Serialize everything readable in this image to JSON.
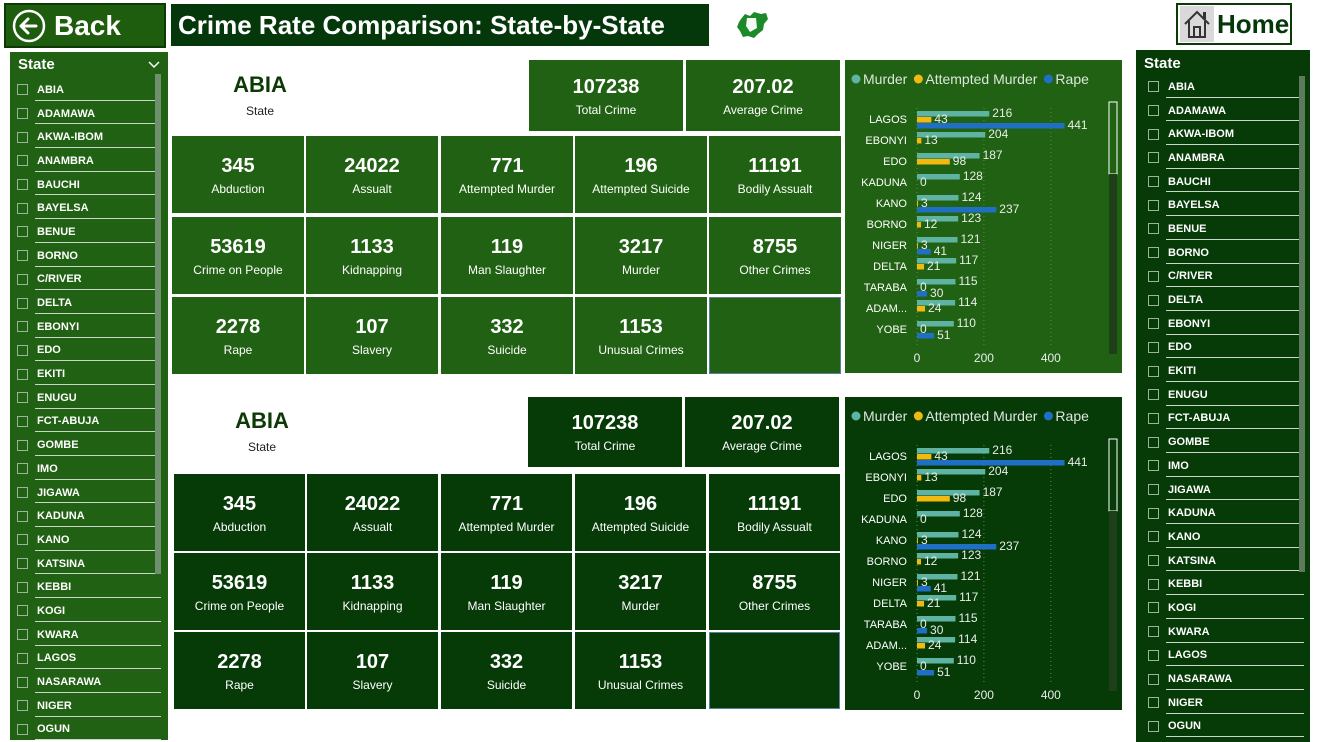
{
  "header": {
    "back_label": "Back",
    "title": "Crime Rate Comparison: State-by-State",
    "home_label": "Home"
  },
  "colors": {
    "dark_green": "#063a07",
    "mid_green": "#216113",
    "murder": "#5fb3a3",
    "attempted": "#f2b90f",
    "rape": "#1f6fc4"
  },
  "slicer_left": {
    "title": "State",
    "items": [
      "ABIA",
      "ADAMAWA",
      "AKWA-IBOM",
      "ANAMBRA",
      "BAUCHI",
      "BAYELSA",
      "BENUE",
      "BORNO",
      "C/RIVER",
      "DELTA",
      "EBONYI",
      "EDO",
      "EKITI",
      "ENUGU",
      "FCT-ABUJA",
      "GOMBE",
      "IMO",
      "JIGAWA",
      "KADUNA",
      "KANO",
      "KATSINA",
      "KEBBI",
      "KOGI",
      "KWARA",
      "LAGOS",
      "NASARAWA",
      "NIGER",
      "OGUN"
    ]
  },
  "slicer_right": {
    "title": "State",
    "items": [
      "ABIA",
      "ADAMAWA",
      "AKWA-IBOM",
      "ANAMBRA",
      "BAUCHI",
      "BAYELSA",
      "BENUE",
      "BORNO",
      "C/RIVER",
      "DELTA",
      "EBONYI",
      "EDO",
      "EKITI",
      "ENUGU",
      "FCT-ABUJA",
      "GOMBE",
      "IMO",
      "JIGAWA",
      "KADUNA",
      "KANO",
      "KATSINA",
      "KEBBI",
      "KOGI",
      "KWARA",
      "LAGOS",
      "NASARAWA",
      "NIGER",
      "OGUN"
    ]
  },
  "panel_top": {
    "state_value": "ABIA",
    "state_label": "State",
    "total_value": "107238",
    "total_label": "Total Crime",
    "avg_value": "207.02",
    "avg_label": "Average Crime",
    "metrics": [
      {
        "value": "345",
        "label": "Abduction"
      },
      {
        "value": "24022",
        "label": "Assualt"
      },
      {
        "value": "771",
        "label": "Attempted Murder"
      },
      {
        "value": "196",
        "label": "Attempted Suicide"
      },
      {
        "value": "11191",
        "label": "Bodily Assualt"
      },
      {
        "value": "53619",
        "label": "Crime on People"
      },
      {
        "value": "1133",
        "label": "Kidnapping"
      },
      {
        "value": "119",
        "label": "Man Slaughter"
      },
      {
        "value": "3217",
        "label": "Murder"
      },
      {
        "value": "8755",
        "label": "Other Crimes"
      },
      {
        "value": "2278",
        "label": "Rape"
      },
      {
        "value": "107",
        "label": "Slavery"
      },
      {
        "value": "332",
        "label": "Suicide"
      },
      {
        "value": "1153",
        "label": "Unusual Crimes"
      }
    ]
  },
  "panel_bottom": {
    "state_value": "ABIA",
    "state_label": "State",
    "total_value": "107238",
    "total_label": "Total Crime",
    "avg_value": "207.02",
    "avg_label": "Average Crime",
    "metrics": [
      {
        "value": "345",
        "label": "Abduction"
      },
      {
        "value": "24022",
        "label": "Assualt"
      },
      {
        "value": "771",
        "label": "Attempted Murder"
      },
      {
        "value": "196",
        "label": "Attempted Suicide"
      },
      {
        "value": "11191",
        "label": "Bodily Assualt"
      },
      {
        "value": "53619",
        "label": "Crime on People"
      },
      {
        "value": "1133",
        "label": "Kidnapping"
      },
      {
        "value": "119",
        "label": "Man Slaughter"
      },
      {
        "value": "3217",
        "label": "Murder"
      },
      {
        "value": "8755",
        "label": "Other Crimes"
      },
      {
        "value": "2278",
        "label": "Rape"
      },
      {
        "value": "107",
        "label": "Slavery"
      },
      {
        "value": "332",
        "label": "Suicide"
      },
      {
        "value": "1153",
        "label": "Unusual Crimes"
      }
    ]
  },
  "chart_data": [
    {
      "type": "bar",
      "orientation": "horizontal",
      "categories": [
        "LAGOS",
        "EBONYI",
        "EDO",
        "KADUNA",
        "KANO",
        "BORNO",
        "NIGER",
        "DELTA",
        "TARABA",
        "ADAM...",
        "YOBE"
      ],
      "series": [
        {
          "name": "Murder",
          "values": [
            216,
            204,
            187,
            128,
            124,
            123,
            121,
            117,
            115,
            114,
            110
          ]
        },
        {
          "name": "Attempted Murder",
          "values": [
            43,
            13,
            98,
            0,
            3,
            12,
            3,
            21,
            0,
            24,
            0
          ]
        },
        {
          "name": "Rape",
          "values": [
            441,
            null,
            null,
            null,
            237,
            null,
            41,
            null,
            30,
            null,
            51
          ]
        }
      ],
      "xticks": [
        0,
        200,
        400
      ],
      "xlim": [
        0,
        520
      ],
      "legend": "top"
    },
    {
      "type": "bar",
      "orientation": "horizontal",
      "categories": [
        "LAGOS",
        "EBONYI",
        "EDO",
        "KADUNA",
        "KANO",
        "BORNO",
        "NIGER",
        "DELTA",
        "TARABA",
        "ADAM...",
        "YOBE"
      ],
      "series": [
        {
          "name": "Murder",
          "values": [
            216,
            204,
            187,
            128,
            124,
            123,
            121,
            117,
            115,
            114,
            110
          ]
        },
        {
          "name": "Attempted Murder",
          "values": [
            43,
            13,
            98,
            0,
            3,
            12,
            3,
            21,
            0,
            24,
            0
          ]
        },
        {
          "name": "Rape",
          "values": [
            441,
            null,
            null,
            null,
            237,
            null,
            41,
            null,
            30,
            null,
            51
          ]
        }
      ],
      "xticks": [
        0,
        200,
        400
      ],
      "xlim": [
        0,
        520
      ],
      "legend": "top"
    }
  ]
}
